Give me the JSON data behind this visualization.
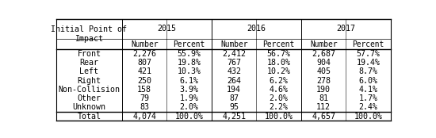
{
  "header_row1_col0": "Initial Point of\nImpact",
  "years": [
    "2015",
    "2016",
    "2017"
  ],
  "subheaders": [
    "Number",
    "Percent"
  ],
  "rows": [
    [
      "Front",
      "2,276",
      "55.9%",
      "2,412",
      "56.7%",
      "2,687",
      "57.7%"
    ],
    [
      "Rear",
      "807",
      "19.8%",
      "767",
      "18.0%",
      "904",
      "19.4%"
    ],
    [
      "Left",
      "421",
      "10.3%",
      "432",
      "10.2%",
      "405",
      "8.7%"
    ],
    [
      "Right",
      "250",
      "6.1%",
      "264",
      "6.2%",
      "278",
      "6.0%"
    ],
    [
      "Non-Collision",
      "158",
      "3.9%",
      "194",
      "4.6%",
      "190",
      "4.1%"
    ],
    [
      "Other",
      "79",
      "1.9%",
      "87",
      "2.0%",
      "81",
      "1.7%"
    ],
    [
      "Unknown",
      "83",
      "2.0%",
      "95",
      "2.2%",
      "112",
      "2.4%"
    ],
    [
      "Total",
      "4,074",
      "100.0%",
      "4,251",
      "100.0%",
      "4,657",
      "100.0%"
    ]
  ],
  "font_size": 7.2,
  "font_family": "monospace",
  "line_color": "black"
}
